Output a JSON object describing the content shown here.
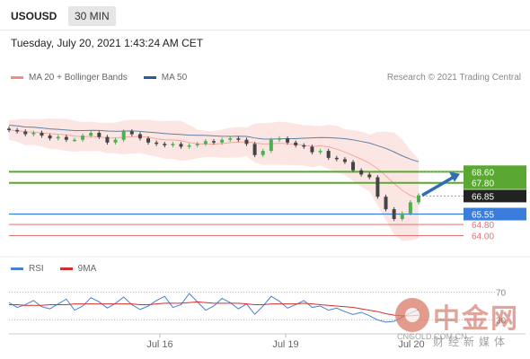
{
  "header": {
    "symbol": "USOUSD",
    "interval": "30 MIN"
  },
  "timestamp": "Tuesday, July 20, 2021 1:43:24 AM CET",
  "legend": {
    "ma20_label": "MA 20 + Bollinger Bands",
    "ma20_color": "#f28b82",
    "ma50_label": "MA 50",
    "ma50_color": "#2c5e8c"
  },
  "credit": "Research © 2021 Trading Central",
  "rsi_legend": {
    "rsi_label": "RSI",
    "rsi_color": "#4a7fd4",
    "ma_label": "9MA",
    "ma_color": "#d32f2f"
  },
  "watermark": {
    "cn": "中金网",
    "domain": "CNGOLD.COM.CN",
    "sub": "财经新媒体"
  },
  "chart_data": [
    {
      "type": "line",
      "title": "USOUSD",
      "x_ticks": [
        "Jul 16",
        "Jul 19",
        "Jul 20"
      ],
      "ylim": [
        63.0,
        74.5
      ],
      "price_levels": [
        {
          "label": "68.60",
          "value": 68.6,
          "color": "#5aa832",
          "kind": "resistance"
        },
        {
          "label": "67.80",
          "value": 67.8,
          "color": "#5aa832",
          "kind": "resistance"
        },
        {
          "label": "66.85",
          "value": 66.85,
          "color": "#222222",
          "kind": "last_price"
        },
        {
          "label": "65.55",
          "value": 65.55,
          "color": "#3b7ddd",
          "kind": "pivot"
        },
        {
          "label": "64.80",
          "value": 64.8,
          "color": "#e57373",
          "kind": "support"
        },
        {
          "label": "64.00",
          "value": 64.0,
          "color": "#e57373",
          "kind": "support"
        }
      ],
      "series": [
        {
          "name": "USOUSD",
          "values": [
            71.6,
            71.5,
            71.3,
            71.4,
            71.2,
            71.0,
            71.1,
            70.9,
            70.9,
            71.2,
            71.4,
            71.1,
            70.7,
            70.9,
            71.5,
            71.3,
            71.0,
            70.7,
            70.6,
            70.5,
            70.6,
            70.4,
            70.5,
            70.6,
            70.8,
            70.7,
            70.9,
            71.0,
            70.9,
            70.6,
            69.8,
            70.1,
            70.9,
            71.0,
            70.7,
            70.5,
            70.4,
            70.0,
            70.1,
            69.6,
            69.5,
            69.3,
            68.7,
            68.4,
            68.2,
            66.8,
            65.9,
            65.2,
            65.6,
            66.4,
            66.9
          ]
        }
      ]
    },
    {
      "type": "line",
      "title": "RSI",
      "y_ticks": [
        30,
        70
      ],
      "ylim": [
        10,
        90
      ],
      "series": [
        {
          "name": "RSI",
          "values": [
            55,
            48,
            52,
            58,
            49,
            46,
            53,
            60,
            44,
            50,
            62,
            56,
            47,
            54,
            63,
            52,
            45,
            50,
            58,
            64,
            48,
            52,
            68,
            56,
            44,
            50,
            61,
            55,
            46,
            53,
            38,
            50,
            64,
            57,
            47,
            52,
            58,
            48,
            50,
            44,
            47,
            42,
            38,
            41,
            36,
            30,
            27,
            28,
            34,
            40,
            45
          ]
        },
        {
          "name": "9MA",
          "values": [
            52,
            52,
            51,
            51,
            51,
            52,
            52,
            52,
            53,
            53,
            53,
            53,
            53,
            53,
            53,
            53,
            52,
            52,
            53,
            54,
            54,
            54,
            55,
            56,
            55,
            54,
            54,
            54,
            54,
            53,
            52,
            52,
            53,
            53,
            53,
            53,
            54,
            53,
            52,
            51,
            50,
            49,
            48,
            46,
            44,
            42,
            39,
            37,
            36,
            36,
            37
          ]
        }
      ]
    }
  ]
}
